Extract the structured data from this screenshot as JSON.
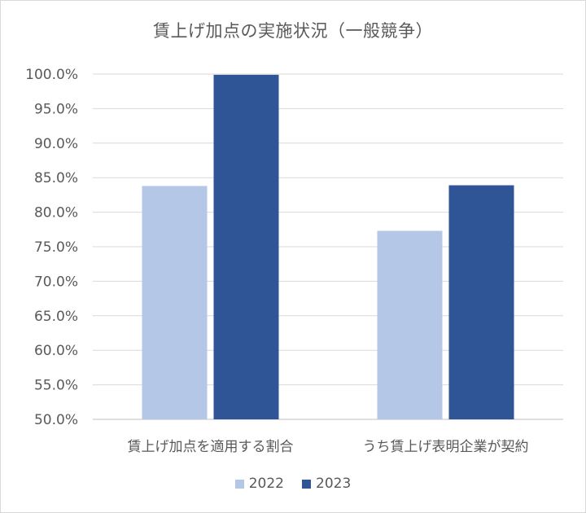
{
  "chart_data": {
    "type": "bar",
    "title": "賃上げ加点の実施状況（一般競争）",
    "categories": [
      "賃上げ加点を適用する割合",
      "うち賃上げ表明企業が契約"
    ],
    "series": [
      {
        "name": "2022",
        "values": [
          83.8,
          77.3
        ],
        "color": "#b4c7e7"
      },
      {
        "name": "2023",
        "values": [
          99.9,
          83.9
        ],
        "color": "#2f5597"
      }
    ],
    "ylim": [
      50,
      100
    ],
    "yticks": [
      "100.0%",
      "95.0%",
      "90.0%",
      "85.0%",
      "80.0%",
      "75.0%",
      "70.0%",
      "65.0%",
      "60.0%",
      "55.0%",
      "50.0%"
    ],
    "ytick_values": [
      100,
      95,
      90,
      85,
      80,
      75,
      70,
      65,
      60,
      55,
      50
    ],
    "xlabel": "",
    "ylabel": "",
    "grid": true,
    "legend_position": "bottom"
  }
}
